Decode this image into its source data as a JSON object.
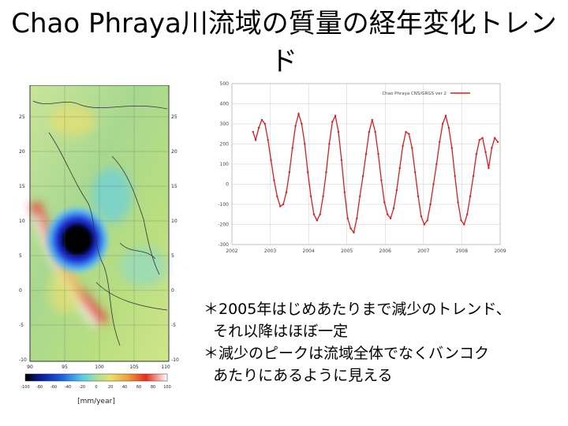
{
  "slide": {
    "title_line1": "Chao Phraya川流域の質量の経年変化トレン",
    "title_line2": "ド"
  },
  "map": {
    "lat_labels": [
      "25",
      "20",
      "15",
      "10",
      "5",
      "0",
      "-5",
      "-10"
    ],
    "lat_labels_right": [
      "25",
      "20",
      "15",
      "10",
      "5",
      "0",
      "-5",
      "-10"
    ],
    "lon_labels": [
      "90",
      "95",
      "100",
      "105",
      "110"
    ],
    "colorbar_ticks": [
      "-100",
      "-80",
      "-60",
      "-40",
      "-20",
      "0",
      "20",
      "40",
      "60",
      "80",
      "100"
    ],
    "colorbar_unit": "[mm/year]"
  },
  "chart_data": {
    "type": "line",
    "title": "",
    "legend": "Chao Phraya CNS/GRGS ver 2",
    "legend_position": "top-right",
    "xlabel": "",
    "ylabel": "",
    "xlim": [
      2002,
      2009
    ],
    "ylim": [
      -300,
      500
    ],
    "xticks": [
      2002,
      2003,
      2004,
      2005,
      2006,
      2007,
      2008,
      2009
    ],
    "yticks": [
      -300,
      -200,
      -100,
      0,
      100,
      200,
      300,
      400,
      500
    ],
    "series": [
      {
        "name": "Chao Phraya CNS/GRGS ver 2",
        "color": "#d42020",
        "x": [
          2002.55,
          2002.62,
          2002.7,
          2002.78,
          2002.86,
          2002.94,
          2003.02,
          2003.1,
          2003.18,
          2003.26,
          2003.34,
          2003.42,
          2003.5,
          2003.58,
          2003.66,
          2003.74,
          2003.82,
          2003.9,
          2003.98,
          2004.06,
          2004.14,
          2004.22,
          2004.3,
          2004.38,
          2004.46,
          2004.54,
          2004.62,
          2004.7,
          2004.78,
          2004.86,
          2004.94,
          2005.02,
          2005.1,
          2005.18,
          2005.26,
          2005.34,
          2005.42,
          2005.5,
          2005.58,
          2005.66,
          2005.74,
          2005.82,
          2005.9,
          2005.98,
          2006.06,
          2006.14,
          2006.22,
          2006.3,
          2006.38,
          2006.46,
          2006.54,
          2006.62,
          2006.7,
          2006.78,
          2006.86,
          2006.94,
          2007.02,
          2007.1,
          2007.18,
          2007.26,
          2007.34,
          2007.42,
          2007.5,
          2007.58,
          2007.66,
          2007.74,
          2007.82,
          2007.9,
          2007.98,
          2008.06,
          2008.14,
          2008.22,
          2008.3,
          2008.38,
          2008.46,
          2008.54,
          2008.62,
          2008.7,
          2008.78,
          2008.86,
          2008.94
        ],
        "y": [
          260,
          220,
          280,
          320,
          300,
          220,
          120,
          20,
          -60,
          -110,
          -100,
          -40,
          60,
          180,
          290,
          350,
          300,
          200,
          60,
          -60,
          -150,
          -180,
          -150,
          -60,
          60,
          200,
          310,
          340,
          260,
          120,
          -40,
          -170,
          -220,
          -240,
          -170,
          -60,
          40,
          150,
          260,
          320,
          260,
          150,
          20,
          -90,
          -150,
          -170,
          -120,
          -30,
          80,
          190,
          260,
          250,
          180,
          60,
          -60,
          -160,
          -200,
          -180,
          -100,
          0,
          100,
          210,
          300,
          340,
          280,
          180,
          40,
          -90,
          -180,
          -200,
          -150,
          -60,
          40,
          150,
          220,
          230,
          160,
          80,
          180,
          230,
          210
        ]
      }
    ]
  },
  "notes": {
    "line1": "＊2005年はじめあたりまで減少のトレンド、",
    "line2": "  それ以降はほぼ一定",
    "line3": "＊減少のピークは流域全体でなくバンコク",
    "line4": "  あたりにあるように見える"
  }
}
